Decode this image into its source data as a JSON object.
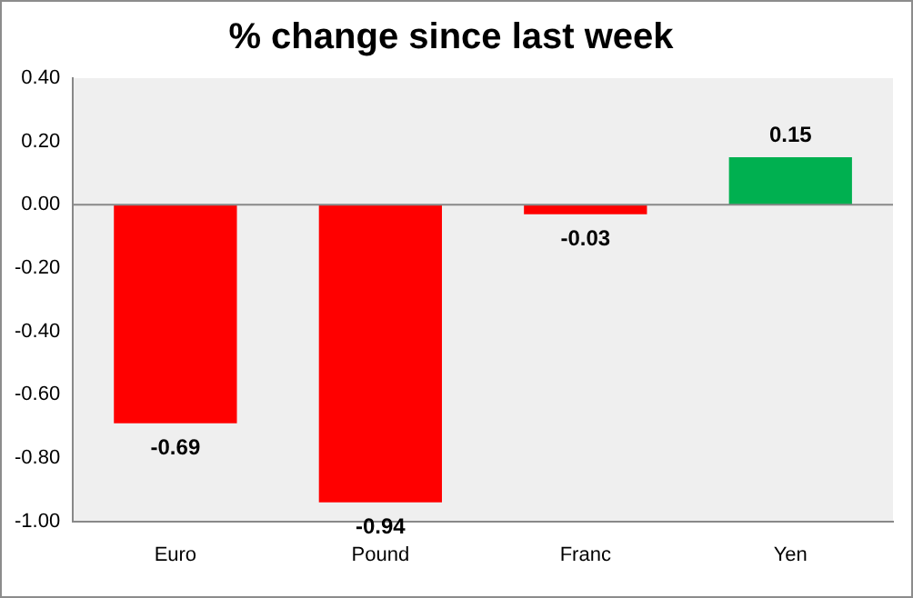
{
  "chart_data": {
    "type": "bar",
    "title": "% change since last week",
    "categories": [
      "Euro",
      "Pound",
      "Franc",
      "Yen"
    ],
    "values": [
      -0.69,
      -0.94,
      -0.03,
      0.15
    ],
    "colors": [
      "#ff0000",
      "#ff0000",
      "#ff0000",
      "#00b050"
    ],
    "ylim": [
      -1,
      0.4
    ],
    "yticks": [
      {
        "value": -1,
        "label": "-1.00"
      },
      {
        "value": -0.8,
        "label": "-0.80"
      },
      {
        "value": -0.6,
        "label": "-0.60"
      },
      {
        "value": -0.4,
        "label": "-0.40"
      },
      {
        "value": -0.2,
        "label": "-0.20"
      },
      {
        "value": 0,
        "label": "0.00"
      },
      {
        "value": 0.2,
        "label": "0.20"
      },
      {
        "value": 0.4,
        "label": "0.40"
      }
    ],
    "ref_lines": [
      {
        "axis": "y",
        "value": 0,
        "color": "#888888"
      }
    ],
    "data_labels": true,
    "grid": false,
    "legend": false
  }
}
